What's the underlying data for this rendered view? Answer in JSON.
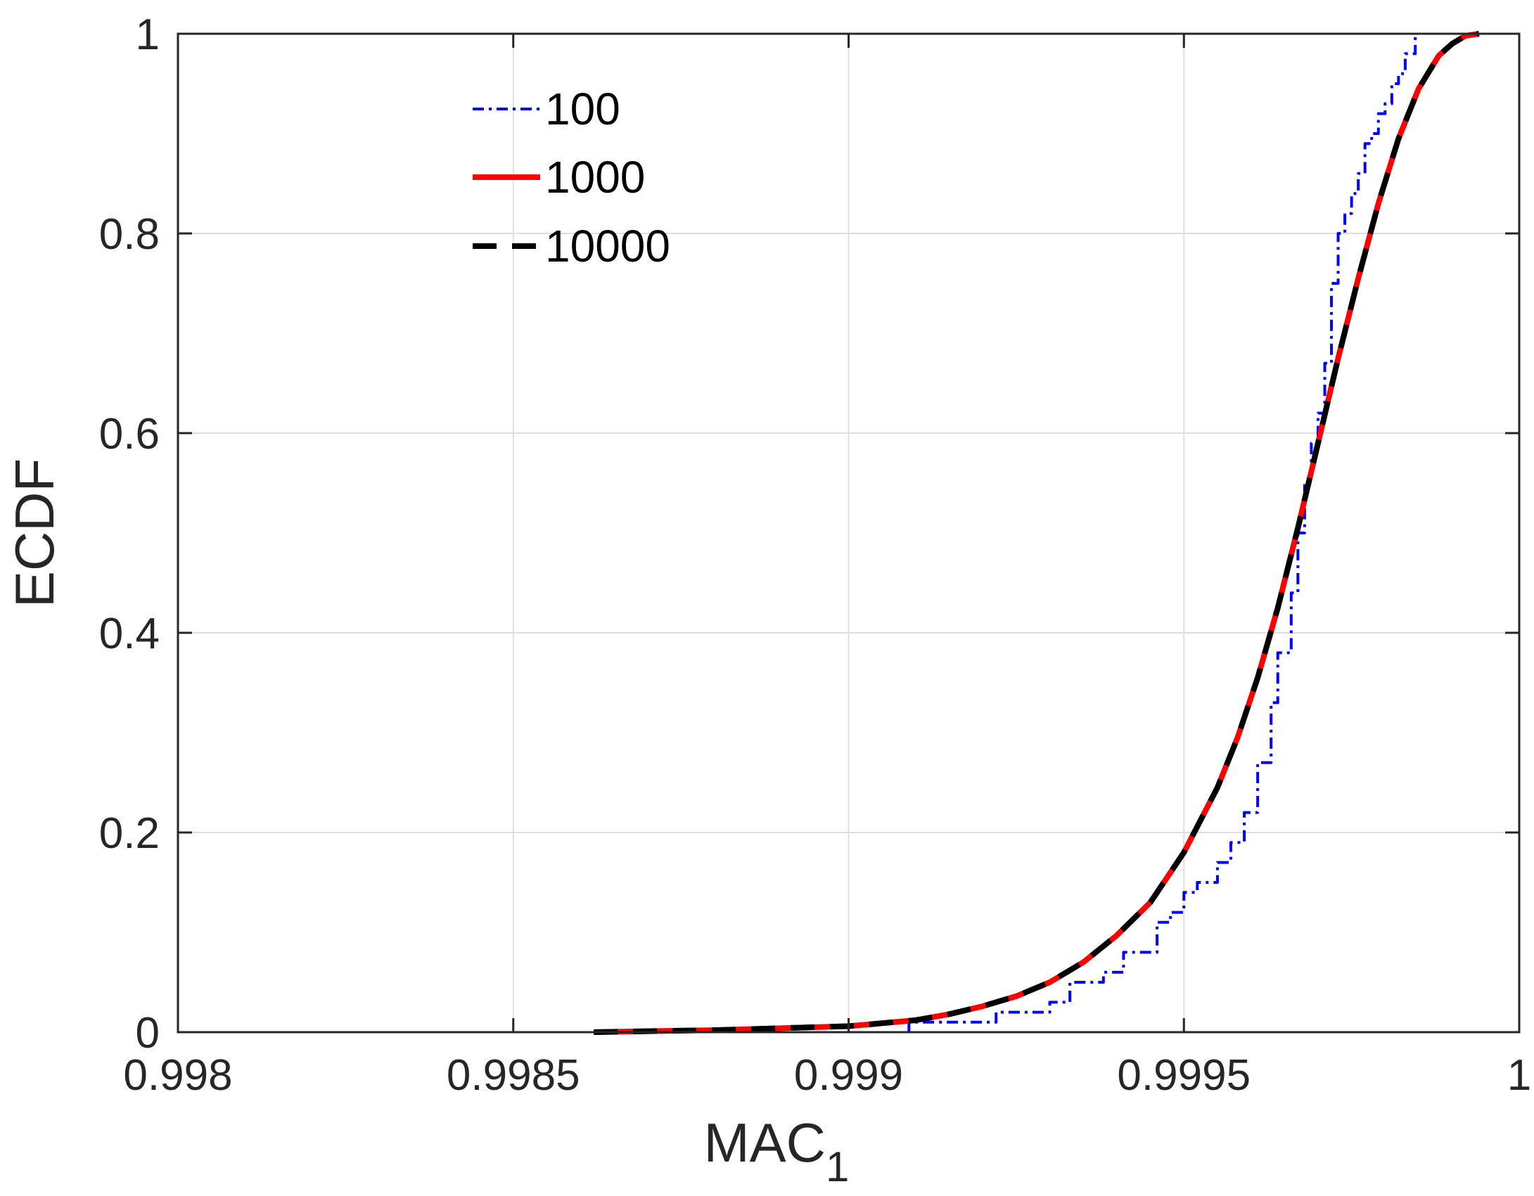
{
  "chart_data": {
    "type": "line",
    "title": "",
    "xlabel": "MAC",
    "xlabel_subscript": "1",
    "ylabel": "ECDF",
    "xlim": [
      0.998,
      1.0
    ],
    "ylim": [
      0,
      1
    ],
    "xticks": [
      0.998,
      0.9985,
      0.999,
      0.9995,
      1.0
    ],
    "xtick_labels": [
      "0.998",
      "0.9985",
      "0.999",
      "0.9995",
      "1"
    ],
    "yticks": [
      0,
      0.2,
      0.4,
      0.6,
      0.8,
      1
    ],
    "ytick_labels": [
      "0",
      "0.2",
      "0.4",
      "0.6",
      "0.8",
      "1"
    ],
    "grid": true,
    "legend_position": "top-left inside",
    "series": [
      {
        "name": "100",
        "color": "#0000ff",
        "style": "dash-dot",
        "step": true,
        "x": [
          0.99909,
          0.99913,
          0.99922,
          0.99925,
          0.9993,
          0.99933,
          0.99938,
          0.99941,
          0.99943,
          0.99946,
          0.99948,
          0.9995,
          0.99952,
          0.99955,
          0.99957,
          0.99959,
          0.99961,
          0.99963,
          0.99964,
          0.99966,
          0.99967,
          0.99968,
          0.99969,
          0.9997,
          0.99971,
          0.99972,
          0.99973,
          0.99974,
          0.99975,
          0.99976,
          0.99977,
          0.99978,
          0.99979,
          0.9998,
          0.99981,
          0.99982,
          0.99983,
          0.999845
        ],
        "y": [
          0.01,
          0.01,
          0.02,
          0.02,
          0.03,
          0.05,
          0.06,
          0.08,
          0.08,
          0.11,
          0.12,
          0.14,
          0.15,
          0.17,
          0.19,
          0.22,
          0.27,
          0.33,
          0.38,
          0.44,
          0.5,
          0.55,
          0.59,
          0.62,
          0.67,
          0.75,
          0.8,
          0.82,
          0.84,
          0.86,
          0.89,
          0.9,
          0.92,
          0.93,
          0.95,
          0.96,
          0.98,
          1.0
        ]
      },
      {
        "name": "1000",
        "color": "#ff0000",
        "style": "solid",
        "step": false,
        "x": [
          0.99862,
          0.9987,
          0.9988,
          0.9989,
          0.999,
          0.9991,
          0.99915,
          0.9992,
          0.99925,
          0.9993,
          0.99935,
          0.9994,
          0.99945,
          0.9995,
          0.99955,
          0.99958,
          0.99961,
          0.99964,
          0.99967,
          0.9997,
          0.99973,
          0.99976,
          0.99979,
          0.99982,
          0.99985,
          0.99988,
          0.9999,
          0.99992,
          0.99994
        ],
        "y": [
          0.0,
          0.001,
          0.002,
          0.004,
          0.006,
          0.012,
          0.018,
          0.026,
          0.036,
          0.05,
          0.07,
          0.097,
          0.13,
          0.18,
          0.245,
          0.295,
          0.355,
          0.425,
          0.505,
          0.59,
          0.675,
          0.755,
          0.83,
          0.895,
          0.945,
          0.978,
          0.99,
          0.998,
          1.0
        ]
      },
      {
        "name": "10000",
        "color": "#000000",
        "style": "dashed",
        "step": false,
        "x": [
          0.99862,
          0.9987,
          0.9988,
          0.9989,
          0.999,
          0.9991,
          0.99915,
          0.9992,
          0.99925,
          0.9993,
          0.99935,
          0.9994,
          0.99945,
          0.9995,
          0.99955,
          0.99958,
          0.99961,
          0.99964,
          0.99967,
          0.9997,
          0.99973,
          0.99976,
          0.99979,
          0.99982,
          0.99985,
          0.99988,
          0.9999,
          0.99992,
          0.99994
        ],
        "y": [
          0.0,
          0.001,
          0.002,
          0.004,
          0.006,
          0.012,
          0.018,
          0.026,
          0.036,
          0.05,
          0.07,
          0.097,
          0.13,
          0.18,
          0.245,
          0.295,
          0.355,
          0.425,
          0.505,
          0.59,
          0.675,
          0.755,
          0.83,
          0.895,
          0.945,
          0.978,
          0.99,
          0.998,
          1.0
        ]
      }
    ]
  }
}
